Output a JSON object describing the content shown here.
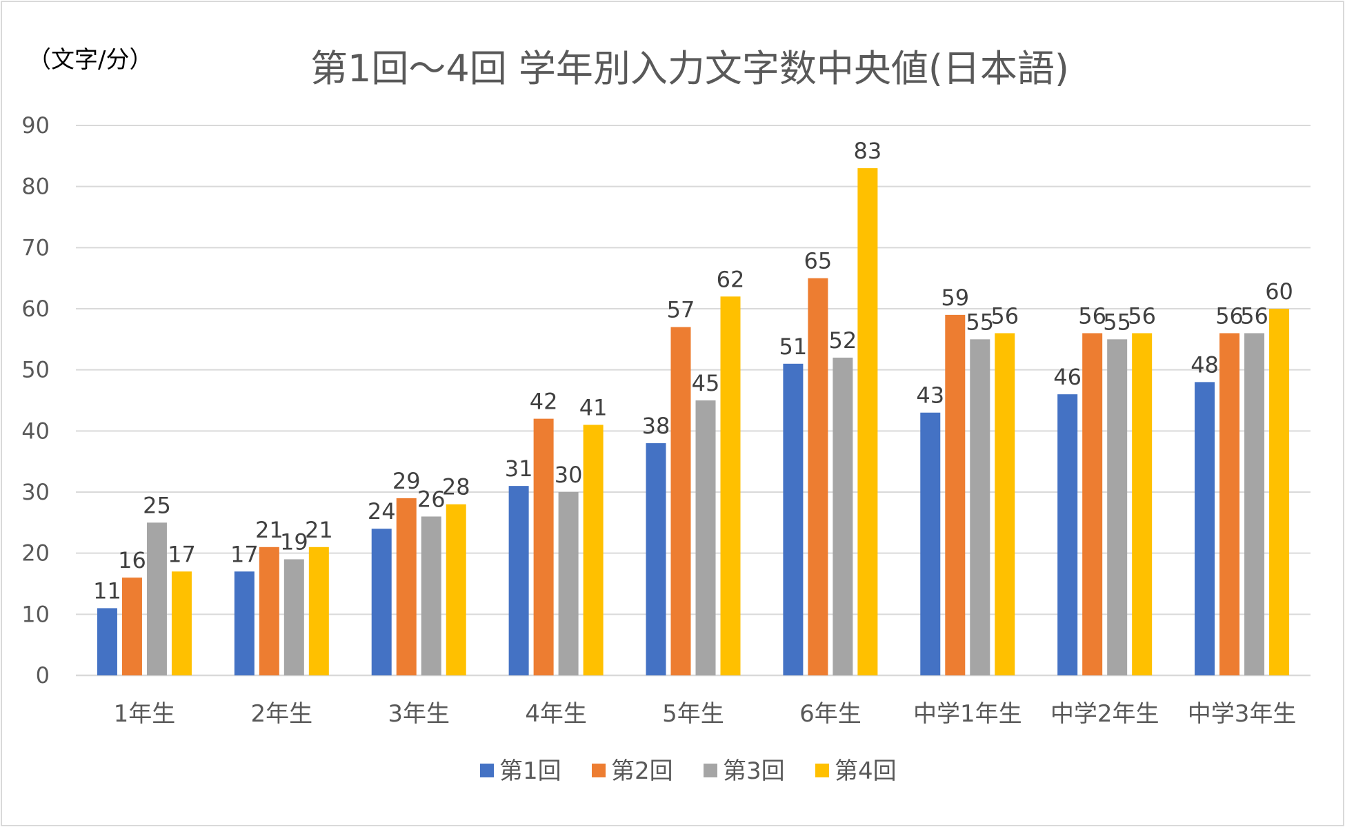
{
  "chart_data": {
    "type": "bar",
    "title": "第1回～4回 学年別入力文字数中央値(日本語)",
    "unit_label": "（文字/分）",
    "xlabel": "",
    "ylabel": "（文字/分）",
    "ylim": [
      0,
      90
    ],
    "yticks": [
      0,
      10,
      20,
      30,
      40,
      50,
      60,
      70,
      80,
      90
    ],
    "grid": true,
    "legend_position": "bottom",
    "categories": [
      "1年生",
      "2年生",
      "3年生",
      "4年生",
      "5年生",
      "6年生",
      "中学1年生",
      "中学2年生",
      "中学3年生"
    ],
    "series": [
      {
        "name": "第1回",
        "color": "#4472C4",
        "values": [
          11,
          17,
          24,
          31,
          38,
          51,
          43,
          46,
          48
        ]
      },
      {
        "name": "第2回",
        "color": "#ED7D31",
        "values": [
          16,
          21,
          29,
          42,
          57,
          65,
          59,
          56,
          56
        ]
      },
      {
        "name": "第3回",
        "color": "#A5A5A5",
        "values": [
          25,
          19,
          26,
          30,
          45,
          52,
          55,
          55,
          56
        ]
      },
      {
        "name": "第4回",
        "color": "#FFC000",
        "values": [
          17,
          21,
          28,
          41,
          62,
          83,
          56,
          56,
          60
        ]
      }
    ]
  }
}
